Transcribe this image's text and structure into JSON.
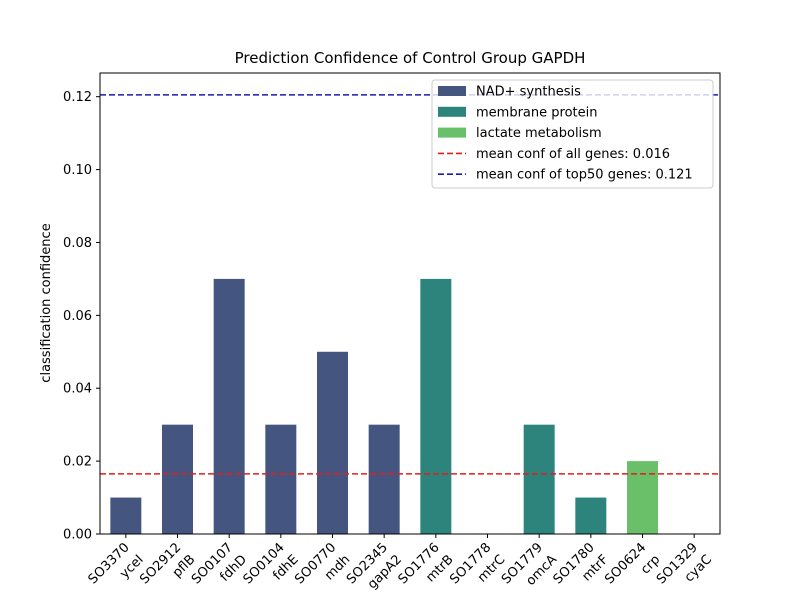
{
  "chart_data": {
    "type": "bar",
    "title": "Prediction Confidence of Control Group GAPDH",
    "xlabel": "",
    "ylabel": "classification confidence",
    "ylim": [
      0,
      0.1265
    ],
    "yticks": [
      "0.00",
      "0.02",
      "0.04",
      "0.06",
      "0.08",
      "0.10",
      "0.12"
    ],
    "grid": false,
    "legend_position": "top-right",
    "categories": [
      {
        "id": "SO3370",
        "gene": "yceI",
        "value": 0.01,
        "group": "NAD+ synthesis"
      },
      {
        "id": "SO2912",
        "gene": "pflB",
        "value": 0.03,
        "group": "NAD+ synthesis"
      },
      {
        "id": "SO0107",
        "gene": "fdhD",
        "value": 0.07,
        "group": "NAD+ synthesis"
      },
      {
        "id": "SO0104",
        "gene": "fdhE",
        "value": 0.03,
        "group": "NAD+ synthesis"
      },
      {
        "id": "SO0770",
        "gene": "mdh",
        "value": 0.05,
        "group": "NAD+ synthesis"
      },
      {
        "id": "SO2345",
        "gene": "gapA2",
        "value": 0.03,
        "group": "NAD+ synthesis"
      },
      {
        "id": "SO1776",
        "gene": "mtrB",
        "value": 0.07,
        "group": "membrane protein"
      },
      {
        "id": "SO1778",
        "gene": "mtrC",
        "value": 0.0,
        "group": "membrane protein"
      },
      {
        "id": "SO1779",
        "gene": "omcA",
        "value": 0.03,
        "group": "membrane protein"
      },
      {
        "id": "SO1780",
        "gene": "mtrF",
        "value": 0.01,
        "group": "membrane protein"
      },
      {
        "id": "SO0624",
        "gene": "crp",
        "value": 0.02,
        "group": "lactate metabolism"
      },
      {
        "id": "SO1329",
        "gene": "cyaC",
        "value": 0.0,
        "group": "lactate metabolism"
      }
    ],
    "groups": [
      {
        "name": "NAD+ synthesis",
        "color": "#44567f"
      },
      {
        "name": "membrane protein",
        "color": "#2c847c"
      },
      {
        "name": "lactate metabolism",
        "color": "#6abf69"
      }
    ],
    "reference_lines": [
      {
        "label": "mean conf of all genes: 0.016",
        "value": 0.0165,
        "color": "#e51c1c"
      },
      {
        "label": "mean conf of top50 genes: 0.121",
        "value": 0.1205,
        "color": "#1a1ab3"
      }
    ]
  }
}
